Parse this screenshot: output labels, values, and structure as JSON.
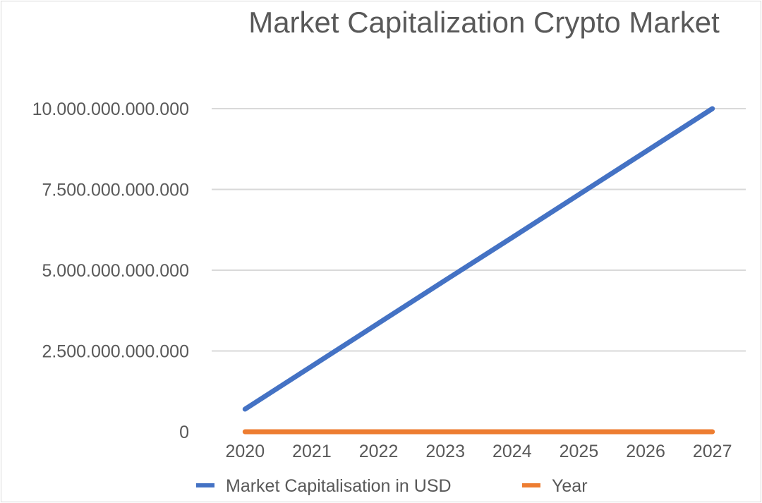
{
  "chart_data": {
    "type": "line",
    "title": "Market Capitalization Crypto Market",
    "xlabel": "",
    "ylabel": "",
    "categories": [
      "2020",
      "2021",
      "2022",
      "2023",
      "2024",
      "2025",
      "2026",
      "2027"
    ],
    "ylim": [
      0,
      10000000000000
    ],
    "y_ticks": [
      0,
      2500000000000,
      5000000000000,
      7500000000000,
      10000000000000
    ],
    "y_tick_labels": [
      "0",
      "2.500.000.000.000",
      "5.000.000.000.000",
      "7.500.000.000.000",
      "10.000.000.000.000"
    ],
    "grid": true,
    "legend_position": "bottom",
    "series": [
      {
        "name": "Market Capitalisation in USD",
        "color": "#4472C4",
        "values": [
          700000000000,
          2030000000000,
          3360000000000,
          4690000000000,
          6010000000000,
          7340000000000,
          8670000000000,
          10000000000000
        ]
      },
      {
        "name": "Year",
        "color": "#ED7D31",
        "values": [
          2020,
          2021,
          2022,
          2023,
          2024,
          2025,
          2026,
          2027
        ]
      }
    ]
  }
}
